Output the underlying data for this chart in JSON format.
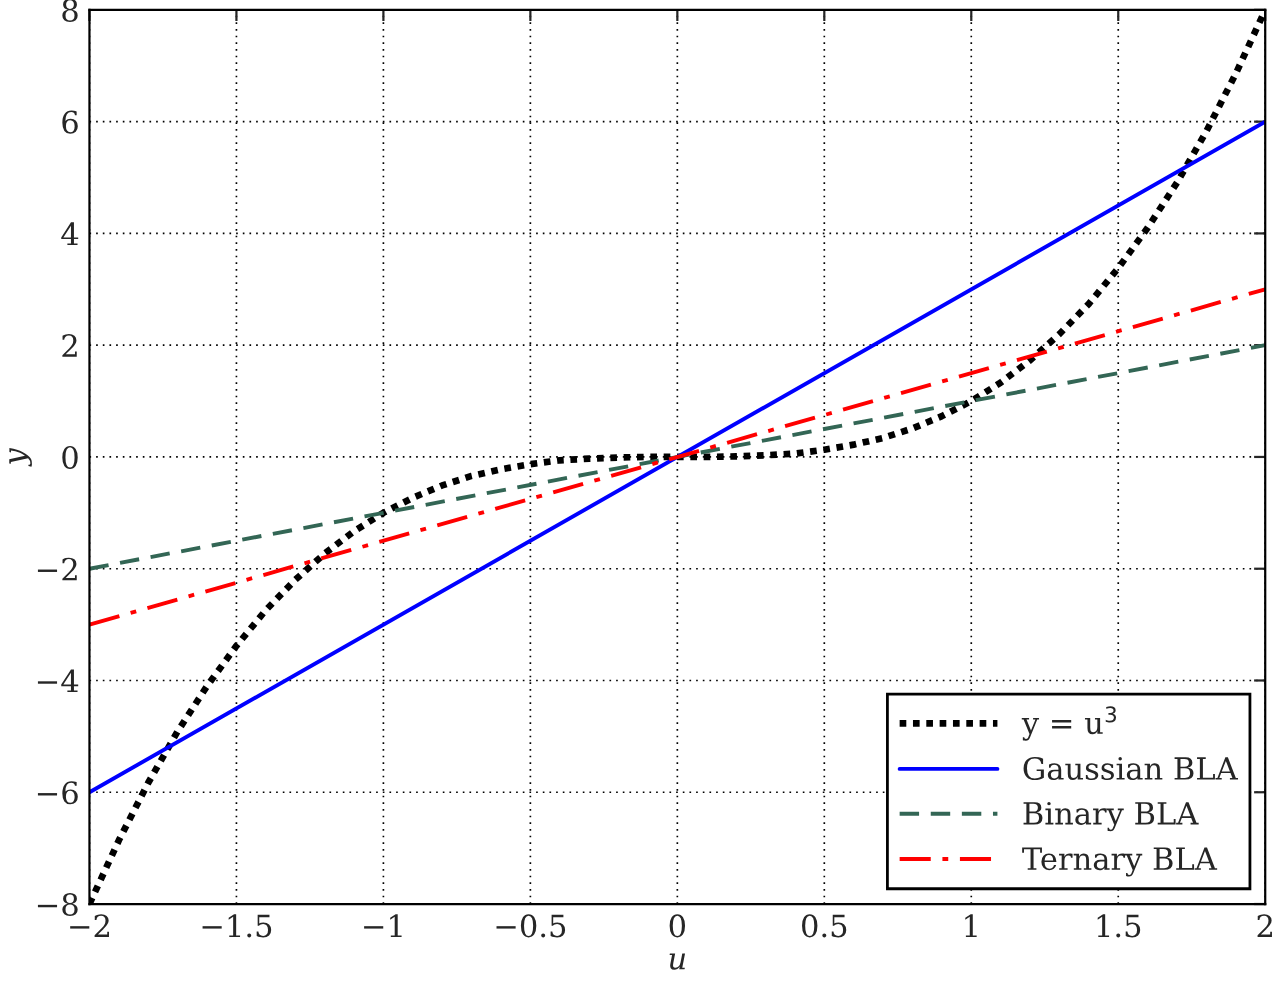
{
  "chart_data": {
    "type": "line",
    "xlabel": "u",
    "ylabel": "y",
    "xlim": [
      -2,
      2
    ],
    "ylim": [
      -8,
      8
    ],
    "xticks": [
      {
        "value": -2,
        "label": "−2"
      },
      {
        "value": -1.5,
        "label": "−1.5"
      },
      {
        "value": -1,
        "label": "−1"
      },
      {
        "value": -0.5,
        "label": "−0.5"
      },
      0,
      0.5,
      1,
      1.5,
      2
    ],
    "yticks": [
      {
        "value": -8,
        "label": "−8"
      },
      {
        "value": -6,
        "label": "−6"
      },
      {
        "value": -4,
        "label": "−4"
      },
      {
        "value": -2,
        "label": "−2"
      },
      0,
      2,
      4,
      6,
      8
    ],
    "grid": true,
    "legend": "bottom right",
    "series": [
      {
        "name": "y = u$^{3}$",
        "color": "#000000",
        "line_style": "dotted",
        "x": [
          -2,
          -1.9,
          -1.8,
          -1.7,
          -1.6,
          -1.5,
          -1.4,
          -1.3,
          -1.2,
          -1.1,
          -1,
          -0.9,
          -0.8,
          -0.7,
          -0.6,
          -0.5,
          -0.4,
          -0.3,
          -0.2,
          -0.1,
          0,
          0.1,
          0.2,
          0.3,
          0.4,
          0.5,
          0.6,
          0.7,
          0.8,
          0.9,
          1,
          1.1,
          1.2,
          1.3,
          1.4,
          1.5,
          1.6,
          1.7,
          1.8,
          1.9,
          2
        ],
        "values": [
          -8,
          -6.86,
          -5.83,
          -4.91,
          -4.1,
          -3.38,
          -2.74,
          -2.2,
          -1.73,
          -1.33,
          -1,
          -0.73,
          -0.51,
          -0.34,
          -0.22,
          -0.13,
          -0.06,
          -0.03,
          -0.01,
          0,
          0,
          0,
          0.01,
          0.03,
          0.06,
          0.13,
          0.22,
          0.34,
          0.51,
          0.73,
          1,
          1.33,
          1.73,
          2.2,
          2.74,
          3.38,
          4.1,
          4.91,
          5.83,
          6.86,
          8
        ]
      },
      {
        "name": "Gaussian BLA",
        "color": "#0000ff",
        "line_style": "solid",
        "x": [
          -2,
          2
        ],
        "values": [
          -6,
          6
        ]
      },
      {
        "name": "Binary BLA",
        "color": "#336655",
        "line_style": "dashed",
        "x": [
          -2,
          2
        ],
        "values": [
          -2,
          2
        ]
      },
      {
        "name": "Ternary BLA",
        "color": "#ff0000",
        "line_style": "dashdot",
        "x": [
          -2,
          2
        ],
        "values": [
          -3,
          3
        ]
      }
    ]
  }
}
